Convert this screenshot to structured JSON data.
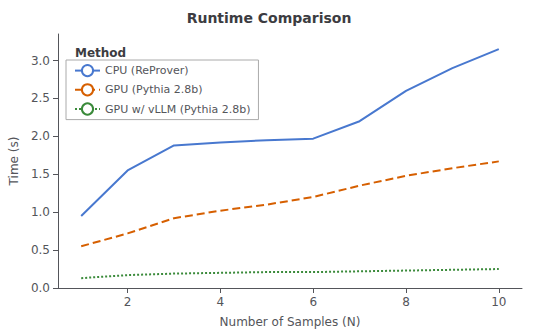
{
  "chart_data": {
    "type": "line",
    "title": "Runtime Comparison",
    "xlabel": "Number of Samples (N)",
    "ylabel": "Time (s)",
    "legend_title": "Method",
    "x": [
      1,
      2,
      3,
      4,
      5,
      6,
      7,
      8,
      9,
      10
    ],
    "series": [
      {
        "name": "CPU (ReProver)",
        "color": "#4878cf",
        "line_style": "solid",
        "values": [
          0.95,
          1.55,
          1.88,
          1.92,
          1.95,
          1.97,
          2.2,
          2.6,
          2.9,
          3.15
        ]
      },
      {
        "name": "GPU (Pythia 2.8b)",
        "color": "#d65f00",
        "line_style": "dashed",
        "values": [
          0.55,
          0.72,
          0.92,
          1.02,
          1.1,
          1.2,
          1.35,
          1.48,
          1.58,
          1.67
        ]
      },
      {
        "name": "GPU w/ vLLM (Pythia 2.8b)",
        "color": "#3a8a3a",
        "line_style": "dotted",
        "values": [
          0.13,
          0.17,
          0.19,
          0.2,
          0.21,
          0.21,
          0.22,
          0.23,
          0.24,
          0.25
        ]
      }
    ],
    "xlim": [
      0.5,
      10.5
    ],
    "ylim": [
      0.0,
      3.35
    ],
    "xticks": [
      2,
      4,
      6,
      8,
      10
    ],
    "yticks": [
      {
        "value": 0.0,
        "label": "0.0"
      },
      0.5,
      {
        "value": 1.0,
        "label": "1.0"
      },
      1.5,
      {
        "value": 2.0,
        "label": "2.0"
      },
      2.5,
      {
        "value": 3.0,
        "label": "3.0"
      }
    ],
    "grid": false,
    "legend": "upper left"
  }
}
